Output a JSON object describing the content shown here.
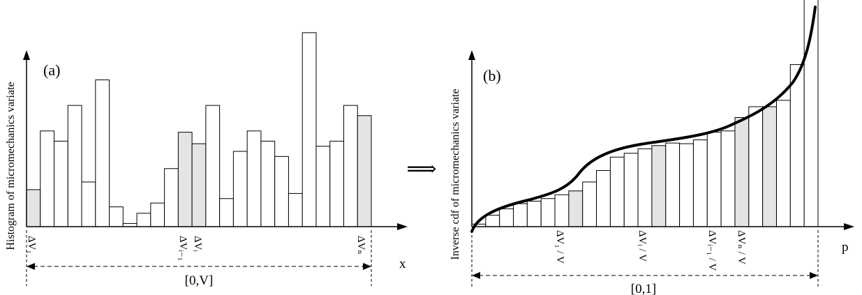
{
  "panel_a": {
    "label": "(a)",
    "ylabel": "Histogram of micromechanics variate",
    "xlabel": "x",
    "range_label": "[0,V]",
    "bars": [
      0.29,
      0.75,
      0.67,
      0.95,
      0.35,
      1.15,
      0.155,
      0.025,
      0.105,
      0.185,
      0.455,
      0.74,
      0.65,
      0.95,
      0.22,
      0.59,
      0.75,
      0.67,
      0.55,
      0.26,
      1.52,
      0.63,
      0.67,
      0.95,
      0.87
    ],
    "highlighted": [
      0,
      11,
      12,
      24
    ],
    "tick_labels": [
      "ΔV₁",
      "ΔVᵢ₋₁",
      "ΔVᵢ",
      "ΔVₙ"
    ]
  },
  "panel_b": {
    "label": "(b)",
    "ylabel": "Inverse cdf of micromechanics variate",
    "xlabel": "p",
    "range_label": "[0,1]",
    "bars": [
      0.02,
      0.09,
      0.14,
      0.18,
      0.2,
      0.22,
      0.25,
      0.28,
      0.35,
      0.44,
      0.545,
      0.575,
      0.61,
      0.635,
      0.655,
      0.65,
      0.68,
      0.74,
      0.75,
      0.855,
      0.94,
      0.94,
      0.99,
      1.27,
      1.84
    ],
    "highlighted": [
      7,
      13,
      19,
      21
    ],
    "tick_labels": [
      "ΔV₁ / V",
      "ΔVᵢ / V",
      "ΔVᵢ₋₁ / V",
      "ΔVₙ / V"
    ]
  },
  "arrow_symbol": "⟹",
  "colors": {
    "highlight": "#e4e4e4",
    "bar": "#ffffff",
    "stroke": "#000000"
  }
}
